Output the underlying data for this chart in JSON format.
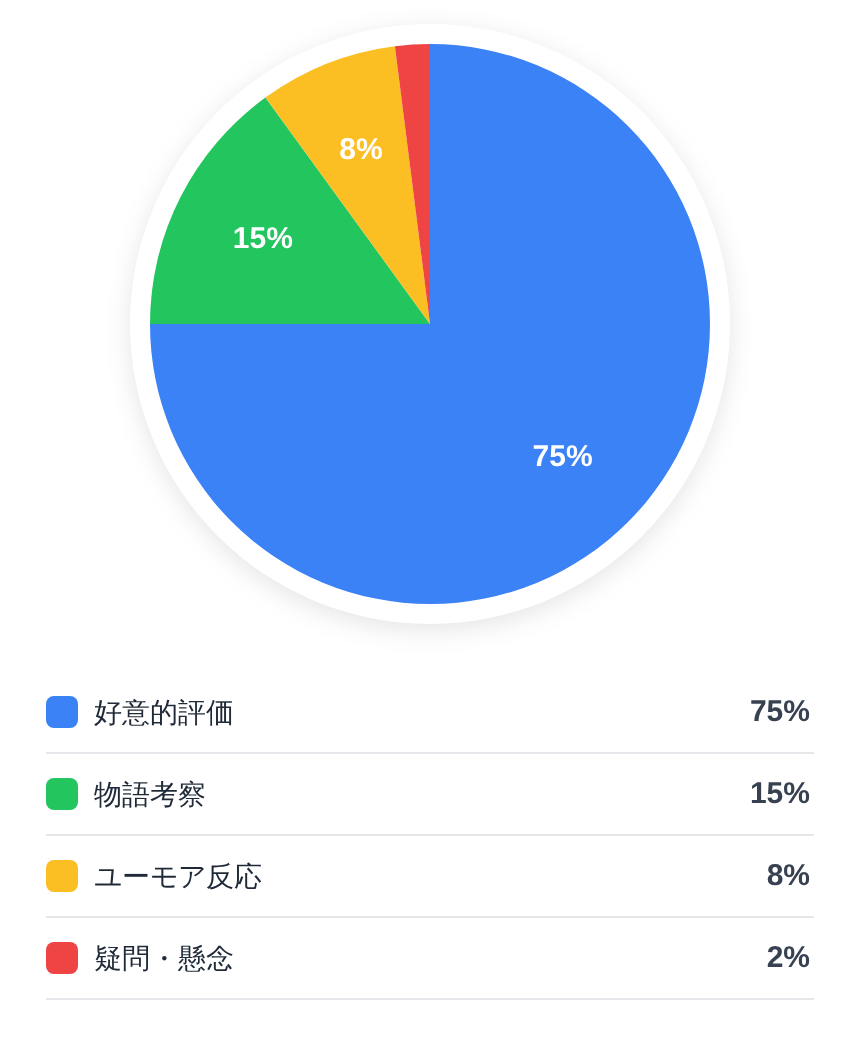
{
  "chart_data": {
    "type": "pie",
    "categories": [
      "好意的評価",
      "物語考察",
      "ユーモア反応",
      "疑問・懸念"
    ],
    "values": [
      75,
      15,
      8,
      2
    ],
    "value_labels": [
      "75%",
      "15%",
      "8%",
      "2%"
    ],
    "colors": [
      "#3b82f6",
      "#22c55e",
      "#fbbf24",
      "#ef4444"
    ],
    "legend": "bottom"
  }
}
